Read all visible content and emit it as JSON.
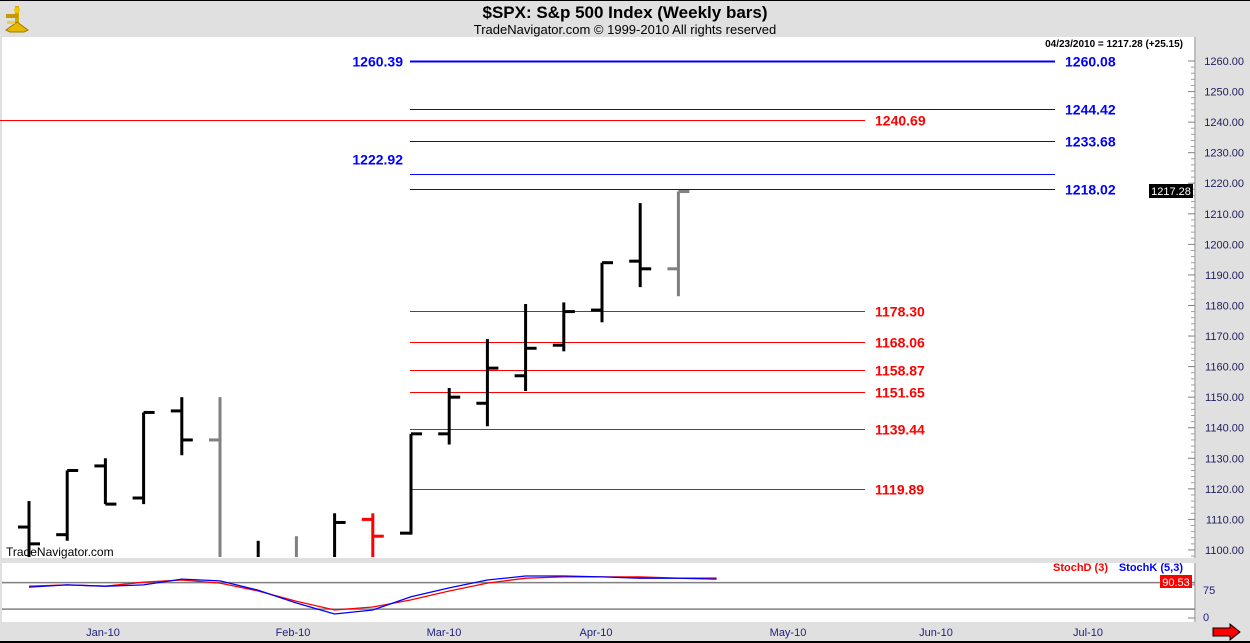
{
  "header": {
    "title": "$SPX:  S&p 500 Index  (Weekly bars)",
    "subtitle": "TradeNavigator.com © 1999-2010 All rights reserved",
    "logo": "TradeNavigator sextant logo"
  },
  "watermark": "TradeNavigator.com",
  "readout": "04/23/2010 = 1217.28 (+25.15)",
  "last_price_label": "1217.28",
  "colors": {
    "up_bar": "#000000",
    "down_bar": "#ff0000",
    "gray_bar": "#808080",
    "red_level": "#ff0000",
    "blue_level": "#0000ff",
    "stochD": "#ff0000",
    "stochK": "#0000ff"
  },
  "icons": {
    "scroll_right": "red-right-arrow-icon"
  },
  "chart_data": [
    {
      "type": "ohlc",
      "title": "$SPX:  S&p 500 Index  (Weekly bars)",
      "ylim": [
        1098,
        1268
      ],
      "y_ticks": [
        "1260.00",
        "1250.00",
        "1240.00",
        "1230.00",
        "1220.00",
        "1210.00",
        "1200.00",
        "1190.00",
        "1180.00",
        "1170.00",
        "1160.00",
        "1150.00",
        "1140.00",
        "1130.00",
        "1120.00",
        "1110.00",
        "1100.00"
      ],
      "x_ticks": [
        "Jan-10",
        "Feb-10",
        "Mar-10",
        "Apr-10",
        "May-10",
        "Jun-10",
        "Jul-10"
      ],
      "bars": [
        {
          "o": 1107.5,
          "h": 1116,
          "l": 1090,
          "c": 1102,
          "color": "black"
        },
        {
          "o": 1105,
          "h": 1126,
          "l": 1103,
          "c": 1126,
          "color": "black"
        },
        {
          "o": 1127.5,
          "h": 1130,
          "l": 1115,
          "c": 1115,
          "color": "black"
        },
        {
          "o": 1117,
          "h": 1145,
          "l": 1115,
          "c": 1145,
          "color": "black"
        },
        {
          "o": 1145.5,
          "h": 1150,
          "l": 1131,
          "c": 1136,
          "color": "black"
        },
        {
          "o": 1136,
          "h": 1150,
          "l": 1080,
          "c": null,
          "color": "gray"
        },
        {
          "o": null,
          "h": 1103,
          "l": 1070,
          "c": null,
          "color": "black"
        },
        {
          "o": null,
          "h": 1104.5,
          "l": 1070,
          "c": null,
          "color": "gray"
        },
        {
          "o": null,
          "h": 1112,
          "l": 1080,
          "c": 1109,
          "color": "black"
        },
        {
          "o": 1110,
          "h": 1112,
          "l": 1080,
          "c": 1104.5,
          "color": "red"
        },
        {
          "o": 1105.5,
          "h": 1138,
          "l": 1105,
          "c": 1138,
          "color": "black"
        },
        {
          "o": 1138,
          "h": 1153,
          "l": 1134.5,
          "c": 1150,
          "color": "black"
        },
        {
          "o": 1148,
          "h": 1169,
          "l": 1140.5,
          "c": 1159.5,
          "color": "black"
        },
        {
          "o": 1157,
          "h": 1180.5,
          "l": 1152,
          "c": 1166,
          "color": "black"
        },
        {
          "o": 1167,
          "h": 1181,
          "l": 1165,
          "c": 1178,
          "color": "black"
        },
        {
          "o": 1178.5,
          "h": 1194,
          "l": 1174.5,
          "c": 1194,
          "color": "black"
        },
        {
          "o": 1194.5,
          "h": 1213.5,
          "l": 1186,
          "c": 1192,
          "color": "black"
        },
        {
          "o": 1192,
          "h": 1217.28,
          "l": 1183,
          "c": 1217.28,
          "color": "gray"
        }
      ],
      "levels_red": [
        {
          "value": 1240.69,
          "label": "1240.69",
          "extends_left": true
        },
        {
          "value": 1178.3,
          "label": "1178.30"
        },
        {
          "value": 1168.06,
          "label": "1168.06"
        },
        {
          "value": 1158.87,
          "label": "1158.87"
        },
        {
          "value": 1151.65,
          "label": "1151.65"
        },
        {
          "value": 1139.44,
          "label": "1139.44"
        },
        {
          "value": 1119.89,
          "label": "1119.89"
        }
      ],
      "levels_blue": [
        {
          "value": 1260.08,
          "label": "1260.08",
          "left_label": "1260.39",
          "thick": true
        },
        {
          "value": 1244.42,
          "label": "1244.42"
        },
        {
          "value": 1233.68,
          "label": "1233.68"
        },
        {
          "value": 1222.92,
          "label": "",
          "left_label": "1222.92"
        },
        {
          "value": 1218.02,
          "label": "1218.02"
        }
      ]
    },
    {
      "type": "line",
      "legend": [
        "StochD (3)",
        "StochK (5,3)"
      ],
      "legend_placement": "top-right",
      "y_ticks": [
        "75",
        "0"
      ],
      "ylim": [
        0,
        100
      ],
      "reference_lines": [
        80,
        20
      ],
      "last_value_label": "90.53",
      "series": [
        {
          "name": "StochD (3)",
          "values": [
            72,
            75,
            72,
            81,
            86,
            79,
            61,
            38,
            18,
            25,
            41,
            61,
            79,
            90,
            93,
            93,
            93,
            90,
            90.53
          ]
        },
        {
          "name": "StochK (5,3)",
          "values": [
            70,
            75,
            72,
            75,
            88,
            84,
            63,
            34,
            9,
            18,
            48,
            68,
            86,
            95,
            95,
            93,
            90,
            90,
            88
          ]
        }
      ]
    }
  ]
}
